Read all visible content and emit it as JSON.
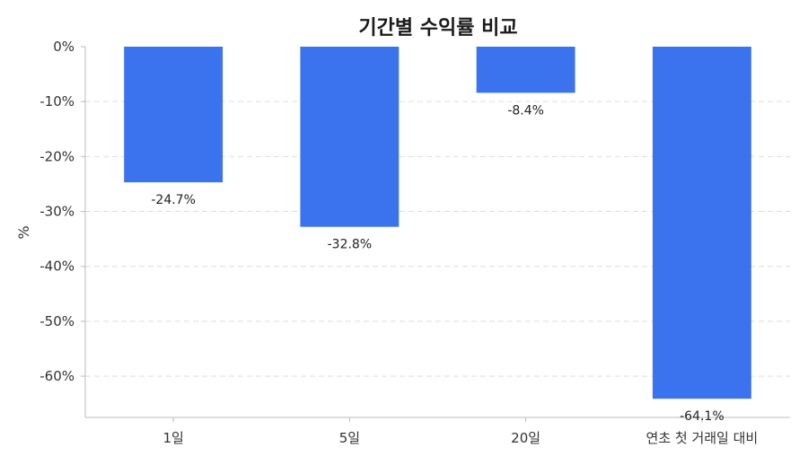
{
  "chart_data": {
    "type": "bar",
    "title": "기간별 수익률 비교",
    "xlabel": "",
    "ylabel": "%",
    "categories": [
      "1일",
      "5일",
      "20일",
      "연초 첫 거래일 대비"
    ],
    "values": [
      -24.7,
      -32.8,
      -8.4,
      -64.1
    ],
    "data_labels": [
      "-24.7%",
      "-32.8%",
      "-8.4%",
      "-64.1%"
    ],
    "ylim": [
      -67.5,
      0
    ],
    "yticks": [
      0,
      -10,
      -20,
      -30,
      -40,
      -50,
      -60
    ],
    "ytick_labels": [
      "0%",
      "-10%",
      "-20%",
      "-30%",
      "-40%",
      "-50%",
      "-60%"
    ],
    "grid": true,
    "legend": "none",
    "colors": {
      "bar": "#3b73ee",
      "grid": "#dddddd",
      "axis": "#bbbbbb",
      "text": "#333333",
      "title": "#1a1a1a"
    }
  }
}
